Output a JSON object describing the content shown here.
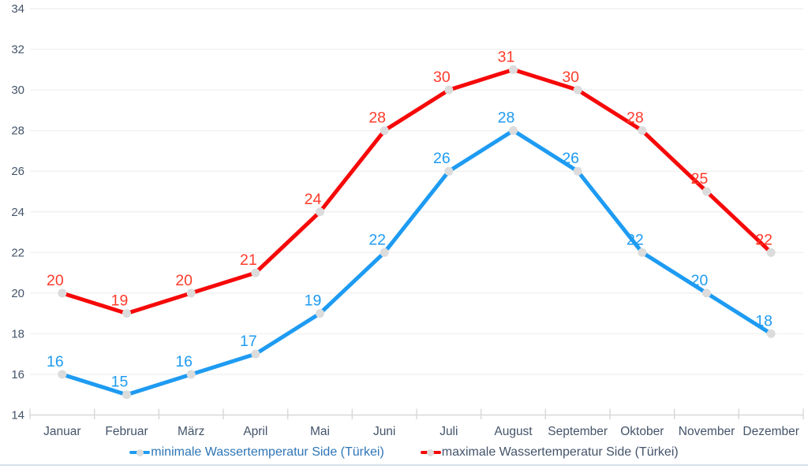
{
  "chart_data": {
    "type": "line",
    "title": "",
    "categories": [
      "Januar",
      "Februar",
      "März",
      "April",
      "Mai",
      "Juni",
      "Juli",
      "August",
      "September",
      "Oktober",
      "November",
      "Dezember"
    ],
    "yticks": [
      14,
      16,
      18,
      20,
      22,
      24,
      26,
      28,
      30,
      32,
      34
    ],
    "ylim": [
      14,
      34
    ],
    "xlabel": "",
    "ylabel": "",
    "grid": true,
    "legend_position": "bottom",
    "series": [
      {
        "name": "minimale Wassertemperatur Side (Türkei)",
        "values": [
          16,
          15,
          16,
          17,
          19,
          22,
          26,
          28,
          26,
          22,
          20,
          18
        ],
        "line_color": "#1E9BF2",
        "label_color": "#1E9BF2",
        "legend_text_color": "#2E75B6"
      },
      {
        "name": "maximale Wassertemperatur Side (Türkei)",
        "values": [
          20,
          19,
          20,
          21,
          24,
          28,
          30,
          31,
          30,
          28,
          25,
          22
        ],
        "line_color": "#F60909",
        "label_color": "#FF3B2B",
        "legend_text_color": "#44546A"
      }
    ],
    "marker_color": "#DCDCDC",
    "axis_text_color": "#44546A",
    "gridline_color": "#F1F1F1",
    "axis_line_color": "#D8D8D8",
    "bottom_rule_color": "#D5DFEA"
  }
}
